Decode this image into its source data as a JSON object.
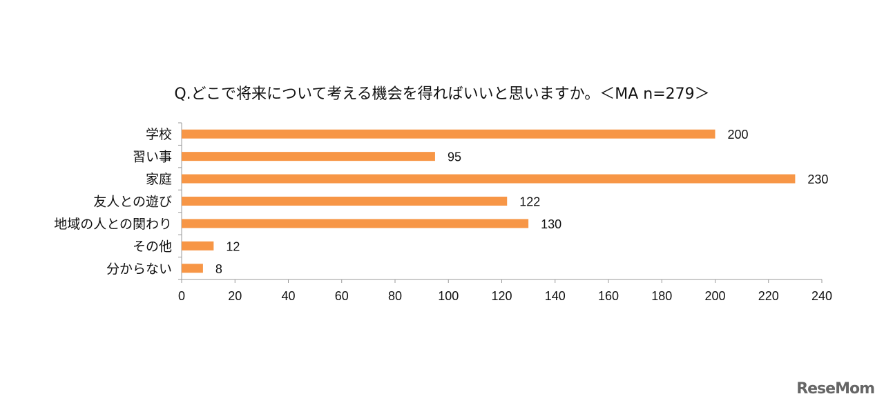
{
  "chart_data": {
    "type": "bar",
    "orientation": "horizontal",
    "title": "Q.どこで将来について考える機会を得ればいいと思いますか。＜MA n=279＞",
    "categories": [
      "学校",
      "習い事",
      "家庭",
      "友人との遊び",
      "地域の人との関わり",
      "その他",
      "分からない"
    ],
    "values": [
      200,
      95,
      230,
      122,
      130,
      12,
      8
    ],
    "xlim": [
      0,
      240
    ],
    "xticks": [
      0,
      20,
      40,
      60,
      80,
      100,
      120,
      140,
      160,
      180,
      200,
      220,
      240
    ],
    "grid": false,
    "bar_color": "#F79646"
  },
  "logo": "ReseMom"
}
